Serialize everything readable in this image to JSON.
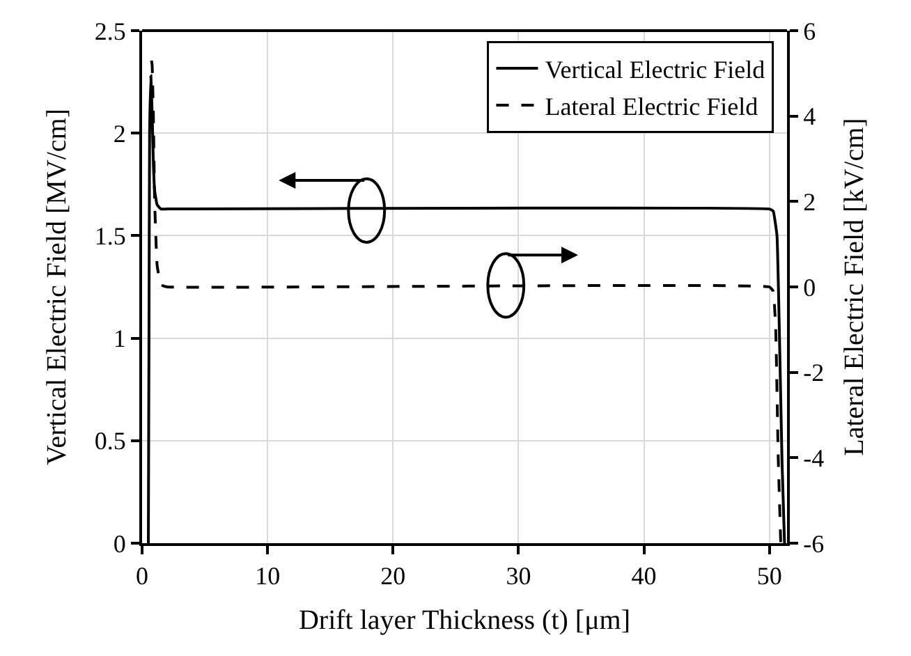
{
  "chart_data": {
    "type": "line",
    "xlabel": "Drift layer Thickness (t) [μm]",
    "ylabel": "Vertical Electric Field [MV/cm]",
    "y2label": "Lateral Electric Field [kV/cm]",
    "xlim": [
      0,
      51.4
    ],
    "xticks": [
      0,
      10,
      20,
      30,
      40,
      50
    ],
    "ylim": [
      0,
      2.5
    ],
    "yticks": [
      0,
      0.5,
      1,
      1.5,
      2,
      2.5
    ],
    "y2lim": [
      -6,
      6
    ],
    "y2ticks": [
      -6,
      -4,
      -2,
      0,
      2,
      4,
      6
    ],
    "grid": true,
    "legend": "top right",
    "marker": "none",
    "series": [
      {
        "name": "Vertical Electric Field",
        "color": "#000000",
        "line_style": "solid",
        "x": [
          0.5,
          0.55,
          0.6,
          0.7,
          0.8,
          0.9,
          1.0,
          1.2,
          1.5,
          2,
          50,
          50.3,
          50.6,
          50.8,
          51,
          51.2
        ],
        "values": [
          0,
          1.0,
          2.0,
          2.28,
          2.1,
          1.85,
          1.72,
          1.65,
          1.63,
          1.63,
          1.63,
          1.62,
          1.5,
          1.0,
          0.4,
          0
        ]
      },
      {
        "name": "Lateral Electric Field",
        "color": "#000000",
        "line_style": "dashed",
        "axis": "y2",
        "x": [
          0.75,
          0.8,
          0.9,
          1.0,
          1.2,
          1.5,
          2,
          50,
          50.3,
          50.5,
          50.7,
          50.9
        ],
        "values": [
          5.3,
          5.2,
          4,
          2,
          0.5,
          0.05,
          0,
          0,
          -0.1,
          -1,
          -4,
          -6
        ]
      }
    ]
  }
}
